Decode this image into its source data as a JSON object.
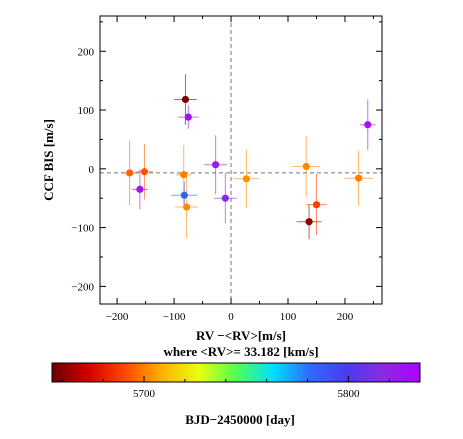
{
  "chart_data": {
    "type": "scatter",
    "xlabel": "RV −<RV>[m/s]",
    "xlabel_sub": "where <RV>= 33.182 [km/s]",
    "ylabel": "CCF BIS [m/s]",
    "xlim": [
      -230,
      265
    ],
    "ylim": [
      -230,
      260
    ],
    "x_ticks": [
      -200,
      -100,
      0,
      100,
      200
    ],
    "y_ticks": [
      -200,
      -100,
      0,
      100,
      200
    ],
    "y_mean_line": -7,
    "zero_line_x": 0,
    "colorbar": {
      "label": "BJD−2450000 [day]",
      "range": [
        5655,
        5835
      ],
      "ticks": [
        5700,
        5800
      ],
      "colormap": [
        "#6b0000",
        "#d40000",
        "#ff4a00",
        "#ffb200",
        "#e8ff10",
        "#50ff50",
        "#00e0ff",
        "#2f6bff",
        "#4a3cf0",
        "#8a2be2",
        "#b000ff"
      ]
    },
    "points": [
      {
        "x": -178,
        "y": -7,
        "xerr": 15,
        "yerr": 55,
        "t": 5695
      },
      {
        "x": -152,
        "y": -5,
        "xerr": 15,
        "yerr": 47,
        "t": 5692
      },
      {
        "x": -160,
        "y": -35,
        "xerr": 14,
        "yerr": 34,
        "t": 5828
      },
      {
        "x": -80,
        "y": 118,
        "xerr": 20,
        "yerr": 43,
        "t": 5658
      },
      {
        "x": -75,
        "y": 88,
        "xerr": 18,
        "yerr": 20,
        "t": 5828
      },
      {
        "x": -83,
        "y": -10,
        "xerr": 14,
        "yerr": 50,
        "t": 5700
      },
      {
        "x": -82,
        "y": -45,
        "xerr": 23,
        "yerr": 23,
        "t": 5785
      },
      {
        "x": -78,
        "y": -65,
        "xerr": 20,
        "yerr": 53,
        "t": 5702
      },
      {
        "x": -27,
        "y": 7,
        "xerr": 20,
        "yerr": 50,
        "t": 5825
      },
      {
        "x": -10,
        "y": -50,
        "xerr": 20,
        "yerr": 43,
        "t": 5818
      },
      {
        "x": 27,
        "y": -17,
        "xerr": 23,
        "yerr": 50,
        "t": 5703
      },
      {
        "x": 132,
        "y": 4,
        "xerr": 24,
        "yerr": 52,
        "t": 5702
      },
      {
        "x": 137,
        "y": -90,
        "xerr": 22,
        "yerr": 30,
        "t": 5660
      },
      {
        "x": 150,
        "y": -61,
        "xerr": 18,
        "yerr": 52,
        "t": 5688
      },
      {
        "x": 224,
        "y": -16,
        "xerr": 25,
        "yerr": 47,
        "t": 5700
      },
      {
        "x": 240,
        "y": 75,
        "xerr": 14,
        "yerr": 43,
        "t": 5828
      }
    ]
  }
}
